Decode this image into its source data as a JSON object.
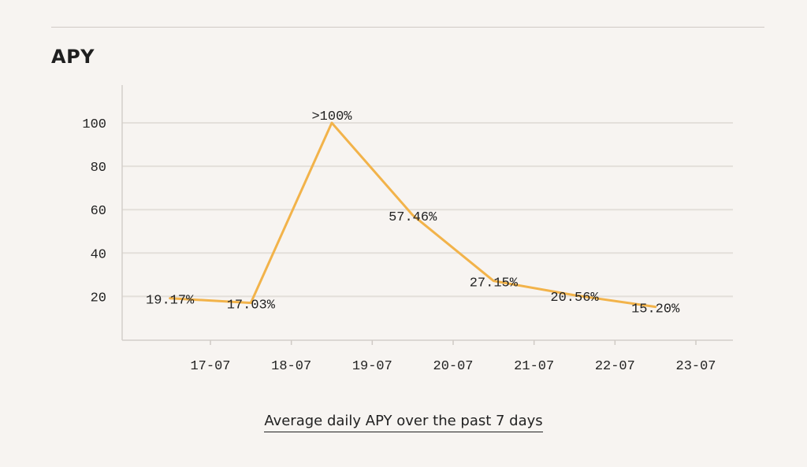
{
  "header": {
    "title": "APY"
  },
  "caption": "Average daily APY over the past 7 days",
  "colors": {
    "line": "#f2b34a",
    "grid": "#e3dfda",
    "axis": "#d4cfca",
    "text": "#222222",
    "background": "#f7f4f1"
  },
  "chart_data": {
    "type": "line",
    "title": "APY",
    "xlabel": "",
    "ylabel": "",
    "x_ticks": [
      "17-07",
      "18-07",
      "19-07",
      "20-07",
      "21-07",
      "22-07",
      "23-07"
    ],
    "y_ticks": [
      20,
      40,
      60,
      80,
      100
    ],
    "ylim": [
      0,
      115
    ],
    "xlim": [
      "16-07",
      "23-07"
    ],
    "grid": true,
    "series": [
      {
        "points": [
          {
            "x": "16-07 12:00",
            "y": 19.17,
            "label": "19.17%"
          },
          {
            "x": "17-07 12:00",
            "y": 17.03,
            "label": "17.03%"
          },
          {
            "x": "18-07 12:00",
            "y": 100,
            "label": ">100%"
          },
          {
            "x": "19-07 12:00",
            "y": 57.46,
            "label": "57.46%"
          },
          {
            "x": "20-07 12:00",
            "y": 27.15,
            "label": "27.15%"
          },
          {
            "x": "21-07 12:00",
            "y": 20.56,
            "label": "20.56%"
          },
          {
            "x": "22-07 12:00",
            "y": 15.2,
            "label": "15.20%"
          }
        ]
      }
    ]
  }
}
